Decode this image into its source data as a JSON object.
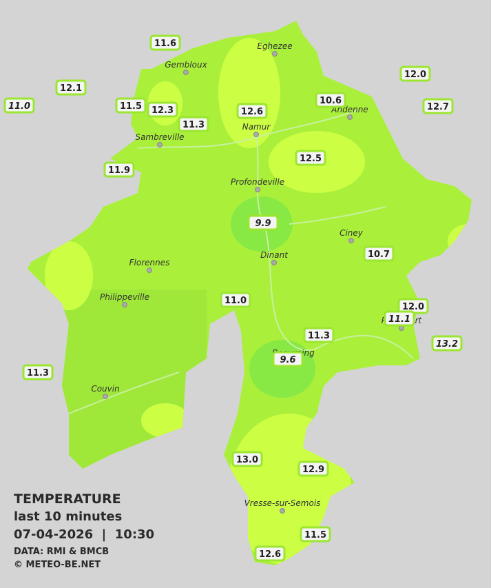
{
  "legend": {
    "title": "TEMPERATURE",
    "subtitle": "last 10 minutes",
    "datetime": "07-04-2026  |  10:30",
    "source": "DATA: RMI & BMCB",
    "copyright": "© METEO-BE.NET"
  },
  "cities": [
    "Eghezee",
    "Gembloux",
    "Namur",
    "Andenne",
    "Sambreville",
    "Profondeville",
    "Ciney",
    "Dinant",
    "Florennes",
    "Philippeville",
    "Rochefort",
    "Beauraing",
    "Couvin",
    "Vresse-sur-Semois"
  ],
  "stations": [
    {
      "label": "11.6",
      "italic": false
    },
    {
      "label": "12.1",
      "italic": false
    },
    {
      "label": "11.0",
      "italic": true
    },
    {
      "label": "11.5",
      "italic": false
    },
    {
      "label": "12.3",
      "italic": false
    },
    {
      "label": "11.3",
      "italic": false
    },
    {
      "label": "12.6",
      "italic": false
    },
    {
      "label": "10.6",
      "italic": false
    },
    {
      "label": "12.0",
      "italic": false
    },
    {
      "label": "12.7",
      "italic": false
    },
    {
      "label": "11.9",
      "italic": false
    },
    {
      "label": "12.5",
      "italic": false
    },
    {
      "label": "9.9",
      "italic": true
    },
    {
      "label": "10.7",
      "italic": false
    },
    {
      "label": "11.0",
      "italic": false
    },
    {
      "label": "12.0",
      "italic": false
    },
    {
      "label": "11.1",
      "italic": true
    },
    {
      "label": "11.3",
      "italic": false
    },
    {
      "label": "13.2",
      "italic": true
    },
    {
      "label": "9.6",
      "italic": true
    },
    {
      "label": "11.3",
      "italic": false
    },
    {
      "label": "13.0",
      "italic": false
    },
    {
      "label": "12.9",
      "italic": false
    },
    {
      "label": "11.5",
      "italic": false
    },
    {
      "label": "12.6",
      "italic": false
    }
  ]
}
